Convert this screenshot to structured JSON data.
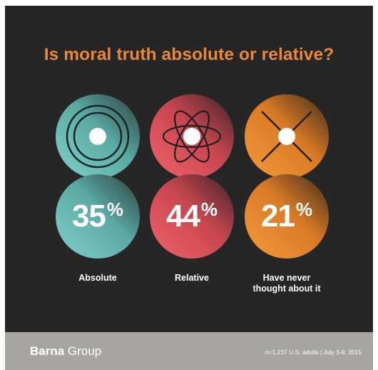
{
  "title": "Is moral truth absolute or relative?",
  "colors": {
    "background": "#262627",
    "title": "#e9873a",
    "absolute": "#6fbfba",
    "relative": "#e0525a",
    "never": "#ec8a2e",
    "footer": "#a6a5a2"
  },
  "chart_data": {
    "type": "pie",
    "categories": [
      "Absolute",
      "Relative",
      "Have never thought about it"
    ],
    "values": [
      35,
      44,
      21
    ],
    "unit": "%",
    "items": [
      {
        "key": "absolute",
        "label": "Absolute",
        "value": "35",
        "sign": "%",
        "icon": "target-icon"
      },
      {
        "key": "relative",
        "label": "Relative",
        "value": "44",
        "sign": "%",
        "icon": "atom-icon"
      },
      {
        "key": "never",
        "label_lines": [
          "Have never",
          "thought about it"
        ],
        "value": "21",
        "sign": "%",
        "icon": "x-cross-icon"
      }
    ]
  },
  "footer": {
    "brand_bold": "Barna",
    "brand_regular": "Group",
    "source": "n=1,237 U.S. adults | July 3-9, 2015"
  }
}
